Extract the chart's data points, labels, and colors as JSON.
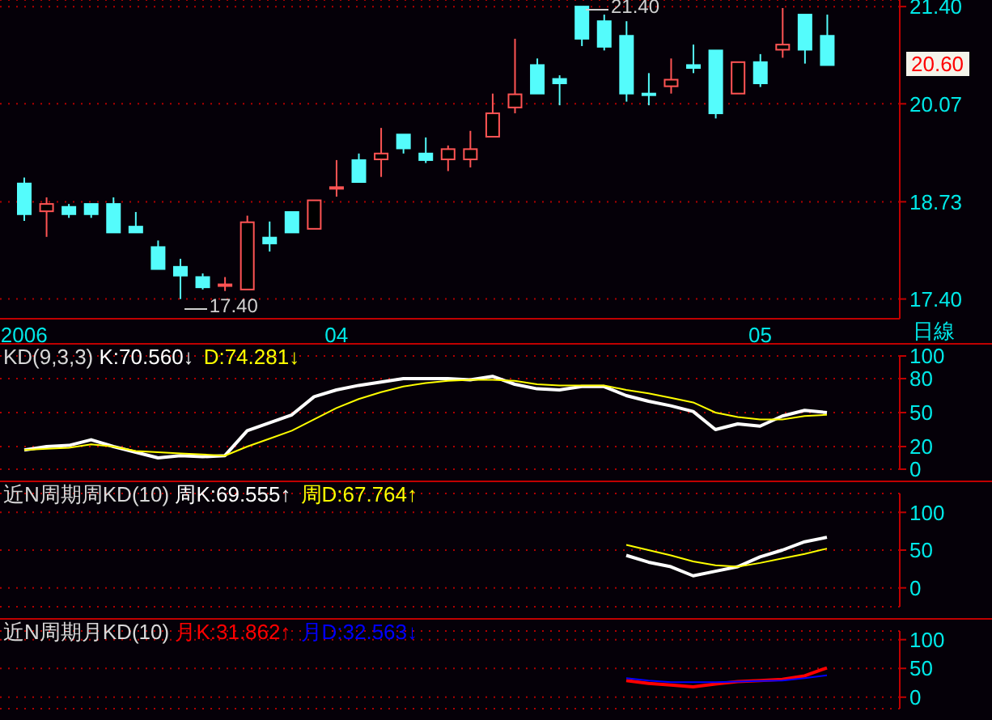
{
  "chart_data": [
    {
      "type": "candlestick",
      "xlabel": "日線",
      "categories": [
        "2006",
        null,
        null,
        null,
        null,
        null,
        null,
        null,
        null,
        null,
        null,
        null,
        null,
        null,
        "04",
        null,
        null,
        null,
        null,
        null,
        null,
        null,
        null,
        null,
        null,
        null,
        null,
        null,
        null,
        null,
        null,
        null,
        null,
        "05",
        null,
        null,
        null
      ],
      "ohlc": [
        [
          18.98,
          19.06,
          18.47,
          18.56
        ],
        [
          18.6,
          18.79,
          18.25,
          18.7
        ],
        [
          18.66,
          18.7,
          18.51,
          18.56
        ],
        [
          18.7,
          18.7,
          18.51,
          18.56
        ],
        [
          18.7,
          18.79,
          18.31,
          18.31
        ],
        [
          18.39,
          18.59,
          18.31,
          18.31
        ],
        [
          18.11,
          18.2,
          17.81,
          17.81
        ],
        [
          17.84,
          17.95,
          17.4,
          17.72
        ],
        [
          17.7,
          17.75,
          17.53,
          17.56
        ],
        [
          17.59,
          17.7,
          17.51,
          17.6
        ],
        [
          17.53,
          18.54,
          17.53,
          18.45
        ],
        [
          18.24,
          18.46,
          18.05,
          18.16
        ],
        [
          18.59,
          18.59,
          18.31,
          18.31
        ],
        [
          18.36,
          18.75,
          18.36,
          18.75
        ],
        [
          18.92,
          19.3,
          18.8,
          18.93
        ],
        [
          19.3,
          19.39,
          19.0,
          19.0
        ],
        [
          19.31,
          19.74,
          19.07,
          19.39
        ],
        [
          19.65,
          19.65,
          19.39,
          19.46
        ],
        [
          19.39,
          19.61,
          19.26,
          19.3
        ],
        [
          19.31,
          19.5,
          19.15,
          19.45
        ],
        [
          19.31,
          19.7,
          19.2,
          19.45
        ],
        [
          19.62,
          20.21,
          19.62,
          19.94
        ],
        [
          20.02,
          20.96,
          19.94,
          20.2
        ],
        [
          20.6,
          20.69,
          20.21,
          20.21
        ],
        [
          20.41,
          20.46,
          20.05,
          20.35
        ],
        [
          21.4,
          21.4,
          20.86,
          20.96
        ],
        [
          21.2,
          21.29,
          20.8,
          20.85
        ],
        [
          21.0,
          21.2,
          20.1,
          20.21
        ],
        [
          20.21,
          20.49,
          20.05,
          20.2
        ],
        [
          20.31,
          20.69,
          20.21,
          20.4
        ],
        [
          20.6,
          20.88,
          20.49,
          20.56
        ],
        [
          20.8,
          20.8,
          19.87,
          19.94
        ],
        [
          20.21,
          20.64,
          20.21,
          20.64
        ],
        [
          20.64,
          20.75,
          20.3,
          20.35
        ],
        [
          20.81,
          21.38,
          20.7,
          20.88
        ],
        [
          21.29,
          21.29,
          20.62,
          20.81
        ],
        [
          21.0,
          21.29,
          20.6,
          20.6
        ]
      ],
      "colors": [
        "#54fcfc",
        "#ff5454",
        "#54fcfc",
        "#54fcfc",
        "#54fcfc",
        "#54fcfc",
        "#54fcfc",
        "#54fcfc",
        "#54fcfc",
        "#ff5454",
        "#ff5454",
        "#54fcfc",
        "#54fcfc",
        "#ff5454",
        "#ff5454",
        "#54fcfc",
        "#ff5454",
        "#54fcfc",
        "#54fcfc",
        "#ff5454",
        "#ff5454",
        "#ff5454",
        "#ff5454",
        "#54fcfc",
        "#54fcfc",
        "#54fcfc",
        "#54fcfc",
        "#54fcfc",
        "#54fcfc",
        "#ff5454",
        "#54fcfc",
        "#54fcfc",
        "#ff5454",
        "#54fcfc",
        "#ff5454",
        "#54fcfc",
        "#54fcfc"
      ],
      "ylim": [
        17.13,
        21.49
      ],
      "yticks": [
        {
          "value": 17.4,
          "label": "17.40"
        },
        18.73,
        20.07,
        {
          "value": 21.4,
          "label": "21.40"
        }
      ],
      "grid": "y",
      "annotations": [
        "17.40",
        "21.40",
        "20.60"
      ]
    },
    {
      "type": "line",
      "title": "KD(9,3,3)",
      "categories": [
        "2006",
        null,
        null,
        null,
        null,
        null,
        null,
        null,
        null,
        null,
        null,
        null,
        null,
        null,
        "04",
        null,
        null,
        null,
        null,
        null,
        null,
        null,
        null,
        null,
        null,
        null,
        null,
        null,
        null,
        null,
        null,
        null,
        null,
        "05",
        null,
        null,
        null
      ],
      "series": [
        {
          "name": "K:70.560↓",
          "color": "#ffffff",
          "values": [
            17,
            20,
            21,
            26,
            20,
            15,
            10,
            12,
            11,
            12,
            34,
            41,
            48,
            64,
            70,
            74,
            77,
            80,
            80,
            80,
            79,
            82,
            75,
            71,
            70,
            73,
            73,
            65,
            60,
            56,
            51,
            35,
            40,
            38,
            47,
            52,
            50
          ]
        },
        {
          "name": "D:74.281↓",
          "color": "#ffff00",
          "values": [
            17,
            18,
            19,
            22,
            20,
            16,
            15,
            14,
            13,
            12,
            20,
            27,
            34,
            44,
            54,
            62,
            68,
            73,
            76,
            78,
            79,
            79,
            78,
            75,
            74,
            74,
            74,
            70,
            67,
            63,
            59,
            50,
            46,
            44,
            44,
            47,
            48
          ]
        }
      ],
      "ylim": [
        0,
        100
      ],
      "yticks": [
        0,
        20,
        50,
        80,
        100
      ],
      "grid": "y",
      "legend": "top left",
      "marker": "none",
      "tick_labels": "y"
    },
    {
      "type": "line",
      "title": "近N周期周KD(10)",
      "categories": [
        "2006",
        null,
        null,
        null,
        null,
        null,
        null,
        null,
        null,
        null,
        null,
        null,
        null,
        null,
        "04",
        null,
        null,
        null,
        null,
        null,
        null,
        null,
        null,
        null,
        null,
        null,
        null,
        null,
        null,
        null,
        null,
        null,
        null,
        "05",
        null,
        null,
        null
      ],
      "series": [
        {
          "name": "周K:69.555↑",
          "color": "#ffffff",
          "values": [
            null,
            null,
            null,
            null,
            null,
            null,
            null,
            null,
            null,
            null,
            null,
            null,
            null,
            null,
            null,
            null,
            null,
            null,
            null,
            null,
            null,
            null,
            null,
            null,
            null,
            null,
            null,
            43,
            34,
            28,
            16,
            22,
            28,
            41,
            50,
            61,
            67
          ]
        },
        {
          "name": "周D:67.764↑",
          "color": "#ffff00",
          "values": [
            null,
            null,
            null,
            null,
            null,
            null,
            null,
            null,
            null,
            null,
            null,
            null,
            null,
            null,
            null,
            null,
            null,
            null,
            null,
            null,
            null,
            null,
            null,
            null,
            null,
            null,
            null,
            57,
            50,
            43,
            35,
            30,
            28,
            33,
            39,
            45,
            52
          ]
        }
      ],
      "ylim": [
        -25,
        125
      ],
      "yticks": [
        0,
        50,
        100
      ],
      "grid": "y",
      "legend": "top left",
      "marker": "none",
      "tick_labels": "y"
    },
    {
      "type": "line",
      "title": "近N周期月KD(10)",
      "categories": [
        "2006",
        null,
        null,
        null,
        null,
        null,
        null,
        null,
        null,
        null,
        null,
        null,
        null,
        null,
        "04",
        null,
        null,
        null,
        null,
        null,
        null,
        null,
        null,
        null,
        null,
        null,
        null,
        null,
        null,
        null,
        null,
        null,
        null,
        "05",
        null,
        null,
        null
      ],
      "series": [
        {
          "name": "月K:31.862↑",
          "color": "#ff0000",
          "values": [
            null,
            null,
            null,
            null,
            null,
            null,
            null,
            null,
            null,
            null,
            null,
            null,
            null,
            null,
            null,
            null,
            null,
            null,
            null,
            null,
            null,
            null,
            null,
            null,
            null,
            null,
            null,
            29,
            24,
            21,
            18,
            23,
            27,
            29,
            31,
            37,
            51
          ]
        },
        {
          "name": "月D:32.563↓",
          "color": "#0000ff",
          "values": [
            null,
            null,
            null,
            null,
            null,
            null,
            null,
            null,
            null,
            null,
            null,
            null,
            null,
            null,
            null,
            null,
            null,
            null,
            null,
            null,
            null,
            null,
            null,
            null,
            null,
            null,
            null,
            33,
            29,
            26,
            26,
            26,
            27,
            28,
            29,
            33,
            38
          ]
        }
      ],
      "ylim": [
        -20,
        115
      ],
      "yticks": [
        0,
        50,
        100
      ],
      "grid": "y",
      "legend": "top left",
      "marker": "none",
      "tick_labels": "y"
    }
  ]
}
